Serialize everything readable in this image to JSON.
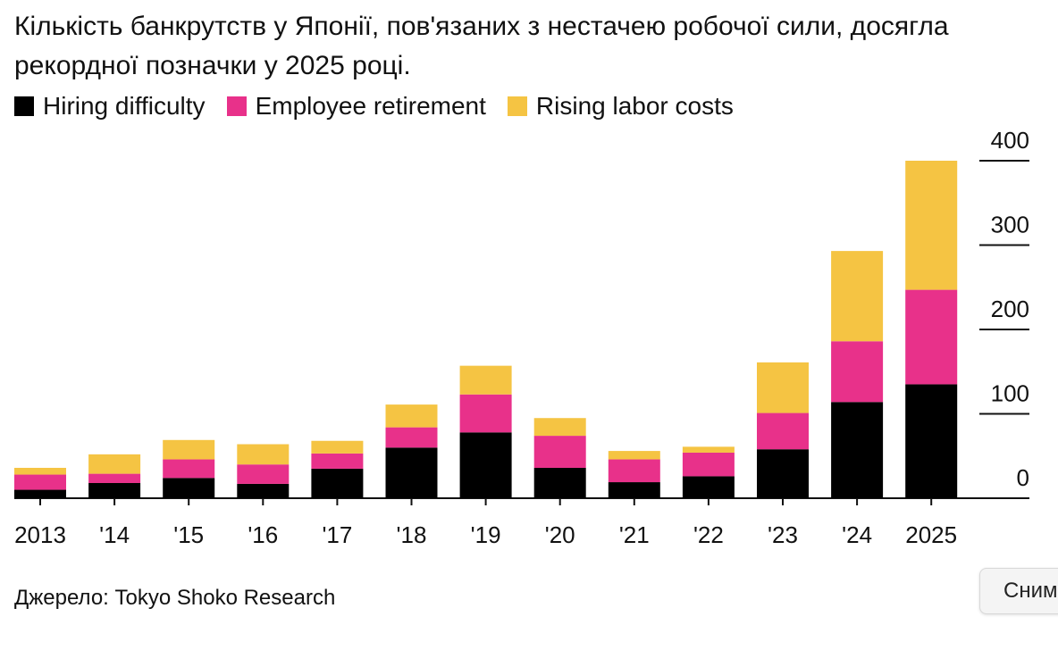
{
  "colors": {
    "hiring": "#000000",
    "retirement": "#e8318a",
    "labor_costs": "#f5c443",
    "axis": "#111111"
  },
  "source_text": "Джерело: Tokyo Shoko Research",
  "snapshot_button_label": "Сним",
  "chart_data": {
    "type": "bar",
    "stacked": true,
    "title": "Кількість банкрутств у Японії, пов'язаних з нестачею робочої сили, досягла рекордної позначки у 2025 році.",
    "categories": [
      "2013",
      "'14",
      "'15",
      "'16",
      "'17",
      "'18",
      "'19",
      "'20",
      "'21",
      "'22",
      "'23",
      "'24",
      "2025"
    ],
    "series": [
      {
        "name": "Hiring difficulty",
        "color": "#000000",
        "values": [
          10,
          18,
          24,
          17,
          35,
          60,
          78,
          36,
          19,
          26,
          58,
          114,
          135
        ]
      },
      {
        "name": "Employee retirement",
        "color": "#e8318a",
        "values": [
          18,
          11,
          22,
          23,
          18,
          24,
          45,
          38,
          27,
          28,
          43,
          72,
          112
        ]
      },
      {
        "name": "Rising labor costs",
        "color": "#f5c443",
        "values": [
          8,
          23,
          23,
          24,
          15,
          27,
          34,
          21,
          10,
          7,
          60,
          107,
          153
        ]
      }
    ],
    "yticks": [
      0,
      100,
      200,
      300,
      400
    ],
    "ylim": [
      0,
      400
    ],
    "y_axis_side": "right",
    "legend_position": "top-left",
    "grid": false,
    "xlabel": "",
    "ylabel": ""
  }
}
